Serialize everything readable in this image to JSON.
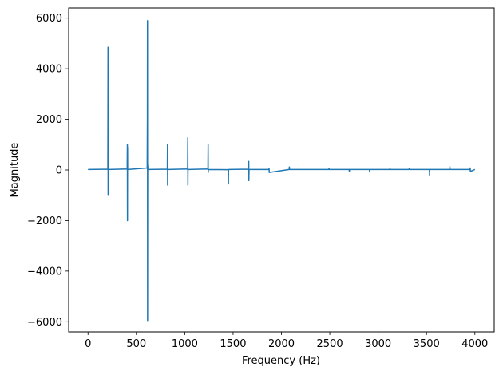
{
  "chart_data": {
    "type": "line",
    "title": "",
    "xlabel": "Frequency (Hz)",
    "ylabel": "Magnitude",
    "xlim": [
      -200,
      4200
    ],
    "ylim": [
      -6400,
      6400
    ],
    "xticks": [
      0,
      500,
      1000,
      1500,
      2000,
      2500,
      3000,
      3500,
      4000
    ],
    "yticks": [
      -6000,
      -4000,
      -2000,
      0,
      2000,
      4000,
      6000
    ],
    "xtick_labels": [
      "0",
      "500",
      "1000",
      "1500",
      "2000",
      "2500",
      "3000",
      "3500",
      "4000"
    ],
    "ytick_labels": [
      "−6000",
      "−4000",
      "−2000",
      "0",
      "2000",
      "4000",
      "6000"
    ],
    "grid": false,
    "legend": "none",
    "series": [
      {
        "color": "#1f77b4",
        "x": [
          0,
          205,
          207,
          208,
          209,
          210,
          212,
          405,
          407,
          408,
          409,
          410,
          412,
          612,
          614,
          615,
          616,
          617,
          619,
          620,
          622,
          820,
          822,
          823,
          824,
          826,
          1030,
          1032,
          1033,
          1034,
          1036,
          1240,
          1242,
          1243,
          1244,
          1246,
          1450,
          1452,
          1453,
          1455,
          1660,
          1662,
          1663,
          1665,
          1870,
          1872,
          1874,
          2080,
          2082,
          2084,
          2490,
          2492,
          2494,
          2700,
          2702,
          2704,
          2910,
          2912,
          2914,
          3120,
          3122,
          3124,
          3320,
          3322,
          3324,
          3530,
          3532,
          3534,
          3740,
          3742,
          3744,
          3950,
          3952,
          3954,
          4000
        ],
        "y": [
          20,
          30,
          4850,
          -1000,
          4800,
          50,
          20,
          40,
          1000,
          -2000,
          900,
          30,
          20,
          80,
          2000,
          5900,
          -5950,
          200,
          60,
          20,
          20,
          30,
          1000,
          -600,
          30,
          20,
          40,
          1270,
          -600,
          30,
          20,
          40,
          1020,
          -100,
          30,
          20,
          10,
          -550,
          10,
          20,
          30,
          340,
          -420,
          20,
          20,
          60,
          -100,
          20,
          120,
          20,
          20,
          60,
          20,
          20,
          -60,
          20,
          20,
          -80,
          20,
          20,
          60,
          20,
          20,
          70,
          20,
          20,
          -200,
          20,
          20,
          130,
          20,
          20,
          80,
          -60,
          20
        ]
      }
    ]
  }
}
